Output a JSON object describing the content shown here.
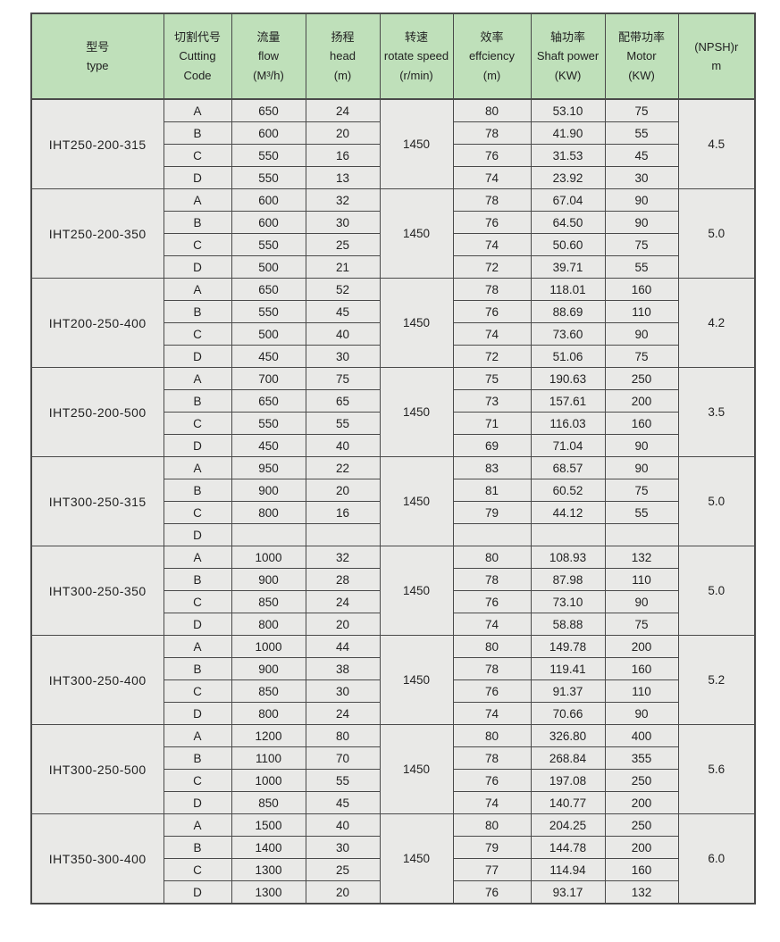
{
  "table": {
    "colors": {
      "header_bg": "#bfe0ba",
      "body_bg": "#e9e9e7",
      "border": "#4a4a4a",
      "text": "#222222"
    },
    "columns": [
      {
        "id": "type",
        "lines": [
          "型号",
          "type"
        ]
      },
      {
        "id": "cutting-code",
        "lines": [
          "切割代号",
          "Cutting",
          "Code"
        ]
      },
      {
        "id": "flow",
        "lines": [
          "流量",
          "flow",
          "(M³/h)"
        ]
      },
      {
        "id": "head",
        "lines": [
          "扬程",
          "head",
          "(m)"
        ]
      },
      {
        "id": "rotate-speed",
        "lines": [
          "转速",
          "rotate speed",
          "(r/min)"
        ]
      },
      {
        "id": "efficiency",
        "lines": [
          "效率",
          "effciency",
          "(m)"
        ]
      },
      {
        "id": "shaft-power",
        "lines": [
          "轴功率",
          "Shaft power",
          "(KW)"
        ]
      },
      {
        "id": "motor",
        "lines": [
          "配带功率",
          "Motor",
          "(KW)"
        ]
      },
      {
        "id": "npsh",
        "lines": [
          "(NPSH)r",
          "m"
        ]
      }
    ],
    "groups": [
      {
        "model": "IHT250-200-315",
        "rotate_speed": "1450",
        "npsh": "4.5",
        "rows": [
          {
            "code": "A",
            "flow": "650",
            "head": "24",
            "eff": "80",
            "shaft": "53.10",
            "motor": "75"
          },
          {
            "code": "B",
            "flow": "600",
            "head": "20",
            "eff": "78",
            "shaft": "41.90",
            "motor": "55"
          },
          {
            "code": "C",
            "flow": "550",
            "head": "16",
            "eff": "76",
            "shaft": "31.53",
            "motor": "45"
          },
          {
            "code": "D",
            "flow": "550",
            "head": "13",
            "eff": "74",
            "shaft": "23.92",
            "motor": "30"
          }
        ]
      },
      {
        "model": "IHT250-200-350",
        "rotate_speed": "1450",
        "npsh": "5.0",
        "rows": [
          {
            "code": "A",
            "flow": "600",
            "head": "32",
            "eff": "78",
            "shaft": "67.04",
            "motor": "90"
          },
          {
            "code": "B",
            "flow": "600",
            "head": "30",
            "eff": "76",
            "shaft": "64.50",
            "motor": "90"
          },
          {
            "code": "C",
            "flow": "550",
            "head": "25",
            "eff": "74",
            "shaft": "50.60",
            "motor": "75"
          },
          {
            "code": "D",
            "flow": "500",
            "head": "21",
            "eff": "72",
            "shaft": "39.71",
            "motor": "55"
          }
        ]
      },
      {
        "model": "IHT200-250-400",
        "rotate_speed": "1450",
        "npsh": "4.2",
        "rows": [
          {
            "code": "A",
            "flow": "650",
            "head": "52",
            "eff": "78",
            "shaft": "118.01",
            "motor": "160"
          },
          {
            "code": "B",
            "flow": "550",
            "head": "45",
            "eff": "76",
            "shaft": "88.69",
            "motor": "110"
          },
          {
            "code": "C",
            "flow": "500",
            "head": "40",
            "eff": "74",
            "shaft": "73.60",
            "motor": "90"
          },
          {
            "code": "D",
            "flow": "450",
            "head": "30",
            "eff": "72",
            "shaft": "51.06",
            "motor": "75"
          }
        ]
      },
      {
        "model": "IHT250-200-500",
        "rotate_speed": "1450",
        "npsh": "3.5",
        "rows": [
          {
            "code": "A",
            "flow": "700",
            "head": "75",
            "eff": "75",
            "shaft": "190.63",
            "motor": "250"
          },
          {
            "code": "B",
            "flow": "650",
            "head": "65",
            "eff": "73",
            "shaft": "157.61",
            "motor": "200"
          },
          {
            "code": "C",
            "flow": "550",
            "head": "55",
            "eff": "71",
            "shaft": "116.03",
            "motor": "160"
          },
          {
            "code": "D",
            "flow": "450",
            "head": "40",
            "eff": "69",
            "shaft": "71.04",
            "motor": "90"
          }
        ]
      },
      {
        "model": "IHT300-250-315",
        "rotate_speed": "1450",
        "npsh": "5.0",
        "rows": [
          {
            "code": "A",
            "flow": "950",
            "head": "22",
            "eff": "83",
            "shaft": "68.57",
            "motor": "90"
          },
          {
            "code": "B",
            "flow": "900",
            "head": "20",
            "eff": "81",
            "shaft": "60.52",
            "motor": "75"
          },
          {
            "code": "C",
            "flow": "800",
            "head": "16",
            "eff": "79",
            "shaft": "44.12",
            "motor": "55"
          },
          {
            "code": "D",
            "flow": "",
            "head": "",
            "eff": "",
            "shaft": "",
            "motor": ""
          }
        ]
      },
      {
        "model": "IHT300-250-350",
        "rotate_speed": "1450",
        "npsh": "5.0",
        "rows": [
          {
            "code": "A",
            "flow": "1000",
            "head": "32",
            "eff": "80",
            "shaft": "108.93",
            "motor": "132"
          },
          {
            "code": "B",
            "flow": "900",
            "head": "28",
            "eff": "78",
            "shaft": "87.98",
            "motor": "110"
          },
          {
            "code": "C",
            "flow": "850",
            "head": "24",
            "eff": "76",
            "shaft": "73.10",
            "motor": "90"
          },
          {
            "code": "D",
            "flow": "800",
            "head": "20",
            "eff": "74",
            "shaft": "58.88",
            "motor": "75"
          }
        ]
      },
      {
        "model": "IHT300-250-400",
        "rotate_speed": "1450",
        "npsh": "5.2",
        "rows": [
          {
            "code": "A",
            "flow": "1000",
            "head": "44",
            "eff": "80",
            "shaft": "149.78",
            "motor": "200"
          },
          {
            "code": "B",
            "flow": "900",
            "head": "38",
            "eff": "78",
            "shaft": "119.41",
            "motor": "160"
          },
          {
            "code": "C",
            "flow": "850",
            "head": "30",
            "eff": "76",
            "shaft": "91.37",
            "motor": "110"
          },
          {
            "code": "D",
            "flow": "800",
            "head": "24",
            "eff": "74",
            "shaft": "70.66",
            "motor": "90"
          }
        ]
      },
      {
        "model": "IHT300-250-500",
        "rotate_speed": "1450",
        "npsh": "5.6",
        "rows": [
          {
            "code": "A",
            "flow": "1200",
            "head": "80",
            "eff": "80",
            "shaft": "326.80",
            "motor": "400"
          },
          {
            "code": "B",
            "flow": "1100",
            "head": "70",
            "eff": "78",
            "shaft": "268.84",
            "motor": "355"
          },
          {
            "code": "C",
            "flow": "1000",
            "head": "55",
            "eff": "76",
            "shaft": "197.08",
            "motor": "250"
          },
          {
            "code": "D",
            "flow": "850",
            "head": "45",
            "eff": "74",
            "shaft": "140.77",
            "motor": "200"
          }
        ]
      },
      {
        "model": "IHT350-300-400",
        "rotate_speed": "1450",
        "npsh": "6.0",
        "rows": [
          {
            "code": "A",
            "flow": "1500",
            "head": "40",
            "eff": "80",
            "shaft": "204.25",
            "motor": "250"
          },
          {
            "code": "B",
            "flow": "1400",
            "head": "30",
            "eff": "79",
            "shaft": "144.78",
            "motor": "200"
          },
          {
            "code": "C",
            "flow": "1300",
            "head": "25",
            "eff": "77",
            "shaft": "114.94",
            "motor": "160"
          },
          {
            "code": "D",
            "flow": "1300",
            "head": "20",
            "eff": "76",
            "shaft": "93.17",
            "motor": "132"
          }
        ]
      }
    ]
  }
}
